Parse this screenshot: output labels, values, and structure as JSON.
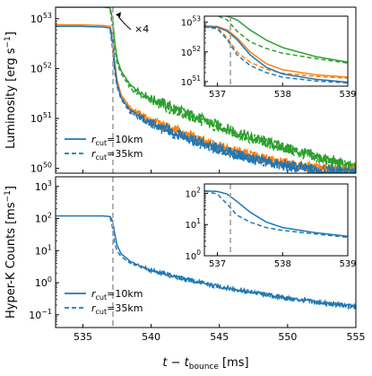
{
  "colors": {
    "blue": "#1f77b4",
    "orange": "#ff7f0e",
    "green": "#2ca02c",
    "vline": "#aaaaaa"
  },
  "chart_data": [
    {
      "type": "line",
      "panel": "top",
      "ylabel": "Luminosity [erg s⁻¹]",
      "ylabel_parts": [
        "Luminosity [erg s",
        "−1",
        "]"
      ],
      "yscale": "log",
      "xlim": [
        533,
        555
      ],
      "ylim": [
        8e+49,
        1.7e+53
      ],
      "yticks": [
        {
          "value": 1e+50,
          "base": "10",
          "exp": "50"
        },
        {
          "value": 1e+51,
          "base": "10",
          "exp": "51"
        },
        {
          "value": 1e+52,
          "base": "10",
          "exp": "52"
        },
        {
          "value": 1e+53,
          "base": "10",
          "exp": "53"
        }
      ],
      "vline_x": 537.2,
      "annotation": "×4",
      "annotation_arrow_target": [
        537.4,
        1.2e+53
      ],
      "legend": {
        "placement": "lower-left",
        "entries": [
          {
            "prefix": "r",
            "sub": "cut",
            "suffix": "=10km",
            "style": "solid",
            "color": "blue"
          },
          {
            "prefix": "r",
            "sub": "cut",
            "suffix": "=35km",
            "style": "dashed",
            "color": "blue"
          }
        ]
      },
      "series": [
        {
          "color": "green",
          "style": "solid",
          "x": [
            533,
            535,
            536.5,
            537.0,
            537.2,
            537.3,
            537.5,
            537.8,
            538.5,
            540,
            542.5,
            545,
            547.5,
            550,
            552.5,
            555
          ],
          "y": [
            1.7e+53,
            1.7e+53,
            1.7e+53,
            1.65e+53,
            9e+52,
            4e+52,
            1.6e+52,
            9e+51,
            4.5e+51,
            2.5e+51,
            1.3e+51,
            7e+50,
            4e+50,
            2.5e+50,
            1.6e+50,
            1e+50
          ]
        },
        {
          "color": "green",
          "style": "dashed",
          "x": [
            537.0,
            537.2,
            537.3,
            537.5,
            537.8,
            538.5,
            540,
            542.5,
            545,
            547.5,
            550,
            552.5,
            555
          ],
          "y": [
            1.5e+53,
            6e+52,
            3e+52,
            1.3e+52,
            8e+51,
            4e+51,
            2.3e+51,
            1.2e+51,
            6.5e+50,
            3.8e+50,
            2.4e+50,
            1.5e+50,
            1e+50
          ]
        },
        {
          "color": "orange",
          "style": "solid",
          "x": [
            533,
            535,
            536.5,
            537.0,
            537.2,
            537.3,
            537.5,
            537.8,
            538.5,
            540,
            542.5,
            545,
            547.5,
            550,
            552.5,
            555
          ],
          "y": [
            7.5e+52,
            7.5e+52,
            7.3e+52,
            7e+52,
            4e+52,
            1.6e+52,
            6e+51,
            3e+51,
            1.6e+51,
            9e+50,
            4.8e+50,
            2.7e+50,
            1.7e+50,
            1.2e+50,
            9.5e+49,
            8.5e+49
          ]
        },
        {
          "color": "orange",
          "style": "dashed",
          "x": [
            537.0,
            537.2,
            537.3,
            537.5,
            537.8,
            538.5,
            540,
            542.5,
            545,
            547.5,
            550,
            552.5,
            555
          ],
          "y": [
            6.5e+52,
            2.5e+52,
            1.2e+52,
            5e+51,
            2.8e+51,
            1.5e+51,
            8.5e+50,
            4.5e+50,
            2.6e+50,
            1.7e+50,
            1.2e+50,
            9.5e+49,
            8.5e+49
          ]
        },
        {
          "color": "blue",
          "style": "solid",
          "x": [
            533,
            535,
            536.5,
            537.0,
            537.2,
            537.3,
            537.5,
            537.8,
            538.5,
            540,
            542.5,
            545,
            547.5,
            550,
            552.5,
            555
          ],
          "y": [
            7e+52,
            7e+52,
            6.8e+52,
            6.5e+52,
            3.5e+52,
            1.4e+52,
            5e+51,
            2.6e+51,
            1.4e+51,
            8e+50,
            4.3e+50,
            2.4e+50,
            1.5e+50,
            1.1e+50,
            9e+49,
            8.2e+49
          ]
        },
        {
          "color": "blue",
          "style": "dashed",
          "x": [
            537.0,
            537.2,
            537.3,
            537.5,
            537.8,
            538.5,
            540,
            542.5,
            545,
            547.5,
            550,
            552.5,
            555
          ],
          "y": [
            6e+52,
            2.2e+52,
            1e+52,
            4.4e+51,
            2.4e+51,
            1.3e+51,
            7.6e+50,
            4.1e+50,
            2.3e+50,
            1.5e+50,
            1.1e+50,
            9e+49,
            8.2e+49
          ]
        }
      ]
    },
    {
      "type": "line",
      "panel": "top-inset",
      "yscale": "log",
      "xlim": [
        536.8,
        539
      ],
      "ylim": [
        7e+50,
        1.6e+53
      ],
      "xticks": [
        537,
        538,
        539
      ],
      "yticks": [
        {
          "value": 1e+51,
          "base": "10",
          "exp": "51"
        },
        {
          "value": 1e+52,
          "base": "10",
          "exp": "52"
        },
        {
          "value": 1e+53,
          "base": "10",
          "exp": "53"
        }
      ],
      "vline_x": 537.2,
      "series": [
        {
          "color": "green",
          "style": "solid",
          "x": [
            536.8,
            537.0,
            537.15,
            537.3,
            537.5,
            537.75,
            538.0,
            538.5,
            539.0
          ],
          "y": [
            1.7e+53,
            1.7e+53,
            1.6e+53,
            1.2e+53,
            5.5e+52,
            2.5e+52,
            1.4e+52,
            7e+51,
            4.5e+51
          ]
        },
        {
          "color": "green",
          "style": "dashed",
          "x": [
            536.8,
            537.0,
            537.15,
            537.3,
            537.5,
            537.75,
            538.0,
            538.5,
            539.0
          ],
          "y": [
            1.7e+53,
            1.65e+53,
            1.2e+53,
            5e+52,
            2.2e+52,
            1.3e+52,
            9e+51,
            6e+51,
            4.2e+51
          ]
        },
        {
          "color": "orange",
          "style": "solid",
          "x": [
            536.8,
            537.0,
            537.15,
            537.3,
            537.5,
            537.75,
            538.0,
            538.5,
            539.0
          ],
          "y": [
            7.5e+52,
            7.2e+52,
            5.5e+52,
            3e+52,
            1e+52,
            4e+51,
            2.5e+51,
            1.7e+51,
            1.4e+51
          ]
        },
        {
          "color": "orange",
          "style": "dashed",
          "x": [
            536.8,
            537.0,
            537.15,
            537.3,
            537.5,
            537.75,
            538.0,
            538.5,
            539.0
          ],
          "y": [
            7.5e+52,
            6.5e+52,
            3e+52,
            1e+52,
            4.5e+51,
            2.6e+51,
            1.9e+51,
            1.5e+51,
            1.3e+51
          ]
        },
        {
          "color": "blue",
          "style": "solid",
          "x": [
            536.8,
            537.0,
            537.15,
            537.3,
            537.5,
            537.75,
            538.0,
            538.5,
            539.0
          ],
          "y": [
            7e+52,
            6.8e+52,
            5e+52,
            2.6e+52,
            8e+51,
            3e+51,
            1.8e+51,
            1.2e+51,
            9.5e+50
          ]
        },
        {
          "color": "blue",
          "style": "dashed",
          "x": [
            536.8,
            537.0,
            537.15,
            537.3,
            537.5,
            537.75,
            538.0,
            538.5,
            539.0
          ],
          "y": [
            7e+52,
            6e+52,
            2.6e+52,
            8e+51,
            3.5e+51,
            2e+51,
            1.4e+51,
            1.05e+51,
            9e+50
          ]
        }
      ]
    },
    {
      "type": "line",
      "panel": "bottom",
      "ylabel": "Hyper-K Counts [ms⁻¹]",
      "ylabel_parts": [
        "Hyper-K Counts [ms",
        "−1",
        "]"
      ],
      "yscale": "log",
      "xlim": [
        533,
        555
      ],
      "ylim": [
        0.04,
        2000
      ],
      "xlabel": "t − t_bounce [ms]",
      "xlabel_parts": [
        "t",
        " − ",
        "t",
        "bounce",
        " [ms]"
      ],
      "xticks": [
        535,
        540,
        545,
        550,
        555
      ],
      "yticks": [
        {
          "value": 0.1,
          "base": "10",
          "exp": "−1"
        },
        {
          "value": 1,
          "base": "10",
          "exp": "0"
        },
        {
          "value": 10,
          "base": "10",
          "exp": "1"
        },
        {
          "value": 100,
          "base": "10",
          "exp": "2"
        },
        {
          "value": 1000,
          "base": "10",
          "exp": "3"
        }
      ],
      "vline_x": 537.2,
      "legend": {
        "placement": "lower-left",
        "entries": [
          {
            "prefix": "r",
            "sub": "cut",
            "suffix": "=10km",
            "style": "solid",
            "color": "blue"
          },
          {
            "prefix": "r",
            "sub": "cut",
            "suffix": "=35km",
            "style": "dashed",
            "color": "blue"
          }
        ]
      },
      "series": [
        {
          "color": "blue",
          "style": "solid",
          "x": [
            533,
            535,
            536.5,
            537.0,
            537.2,
            537.3,
            537.5,
            537.8,
            538.5,
            540,
            542.5,
            545,
            547.5,
            550,
            552.5,
            555
          ],
          "y": [
            120,
            120,
            120,
            115,
            80,
            40,
            15,
            8,
            4.5,
            2.5,
            1.3,
            0.75,
            0.5,
            0.33,
            0.24,
            0.18
          ]
        },
        {
          "color": "blue",
          "style": "dashed",
          "x": [
            537.0,
            537.2,
            537.3,
            537.5,
            537.8,
            538.5,
            540,
            542.5,
            545,
            547.5,
            550,
            552.5,
            555
          ],
          "y": [
            110,
            45,
            20,
            10,
            6.5,
            4,
            2.3,
            1.25,
            0.72,
            0.48,
            0.32,
            0.23,
            0.17
          ]
        }
      ]
    },
    {
      "type": "line",
      "panel": "bottom-inset",
      "yscale": "log",
      "xlim": [
        536.8,
        539
      ],
      "ylim": [
        1,
        200
      ],
      "xticks": [
        537,
        538,
        539
      ],
      "yticks": [
        {
          "value": 1,
          "base": "10",
          "exp": "0"
        },
        {
          "value": 10,
          "base": "10",
          "exp": "1"
        },
        {
          "value": 100,
          "base": "10",
          "exp": "2"
        }
      ],
      "vline_x": 537.2,
      "series": [
        {
          "color": "blue",
          "style": "solid",
          "x": [
            536.8,
            537.0,
            537.15,
            537.3,
            537.5,
            537.75,
            538.0,
            538.5,
            539.0
          ],
          "y": [
            120,
            115,
            95,
            55,
            25,
            12,
            8,
            5.5,
            4.2
          ]
        },
        {
          "color": "blue",
          "style": "dashed",
          "x": [
            536.8,
            537.0,
            537.15,
            537.3,
            537.5,
            537.75,
            538.0,
            538.5,
            539.0
          ],
          "y": [
            120,
            95,
            45,
            20,
            12,
            8,
            6.5,
            5,
            3.9
          ]
        }
      ]
    }
  ]
}
